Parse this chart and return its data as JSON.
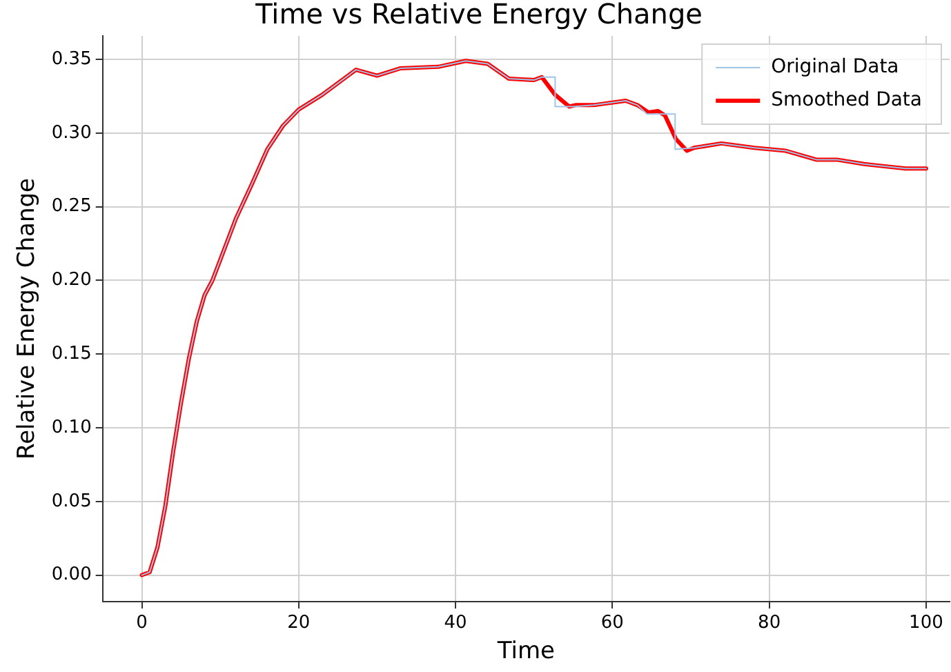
{
  "chart_data": {
    "type": "line",
    "title": "Time vs Relative Energy Change",
    "xlabel": "Time",
    "ylabel": "Relative Energy Change",
    "xlim": [
      -5,
      103
    ],
    "ylim": [
      -0.018,
      0.366
    ],
    "xticks": [
      0,
      20,
      40,
      60,
      80,
      100
    ],
    "yticks": [
      {
        "value": 0,
        "label": "0.00"
      },
      0.05,
      {
        "value": 0.1,
        "label": "0.10"
      },
      0.15,
      {
        "value": 0.2,
        "label": "0.20"
      },
      0.25,
      {
        "value": 0.3,
        "label": "0.30"
      },
      0.35
    ],
    "grid": true,
    "legend": "top right",
    "marker": "none",
    "line_style": "solid",
    "series": [
      {
        "name": "Original Data",
        "color": "#9ec5e8",
        "x": [
          0,
          1,
          2,
          3,
          4,
          5,
          6,
          7,
          8,
          9,
          10,
          12,
          14,
          16,
          18,
          20,
          23,
          27.3,
          30,
          33,
          37.8,
          41.3,
          44.1,
          46.8,
          50,
          51,
          52.7,
          52.7,
          55,
          57.6,
          61.7,
          63.2,
          64.4,
          68,
          68,
          70.4,
          73.9,
          78.1,
          82.1,
          86,
          88.6,
          92.1,
          97.4,
          100
        ],
        "values": [
          0,
          0.002,
          0.019,
          0.047,
          0.084,
          0.117,
          0.147,
          0.172,
          0.19,
          0.2,
          0.214,
          0.242,
          0.265,
          0.289,
          0.305,
          0.316,
          0.326,
          0.343,
          0.339,
          0.344,
          0.345,
          0.349,
          0.347,
          0.337,
          0.336,
          0.338,
          0.338,
          0.318,
          0.318,
          0.319,
          0.322,
          0.319,
          0.313,
          0.313,
          0.289,
          0.29,
          0.293,
          0.29,
          0.288,
          0.282,
          0.282,
          0.279,
          0.276,
          0.276
        ]
      },
      {
        "name": "Smoothed Data",
        "color": "#ff0000",
        "x": [
          0,
          1,
          2,
          3,
          4,
          5,
          6,
          7,
          8,
          9,
          10,
          12,
          14,
          16,
          18,
          20,
          23,
          27.3,
          30,
          33,
          37.8,
          41.3,
          44.1,
          46.8,
          50,
          51,
          52.7,
          54.5,
          55.3,
          57.6,
          61.7,
          63.2,
          64.6,
          65.8,
          66.7,
          68.1,
          69.5,
          70.4,
          73.9,
          78.1,
          82.1,
          86,
          88.6,
          92.1,
          97.4,
          100
        ],
        "values": [
          0,
          0.002,
          0.019,
          0.047,
          0.084,
          0.117,
          0.147,
          0.172,
          0.19,
          0.2,
          0.214,
          0.242,
          0.265,
          0.289,
          0.305,
          0.316,
          0.326,
          0.343,
          0.339,
          0.344,
          0.345,
          0.349,
          0.347,
          0.337,
          0.336,
          0.338,
          0.326,
          0.318,
          0.319,
          0.319,
          0.322,
          0.319,
          0.314,
          0.315,
          0.312,
          0.296,
          0.288,
          0.29,
          0.293,
          0.29,
          0.288,
          0.282,
          0.282,
          0.279,
          0.276,
          0.276
        ]
      }
    ]
  }
}
